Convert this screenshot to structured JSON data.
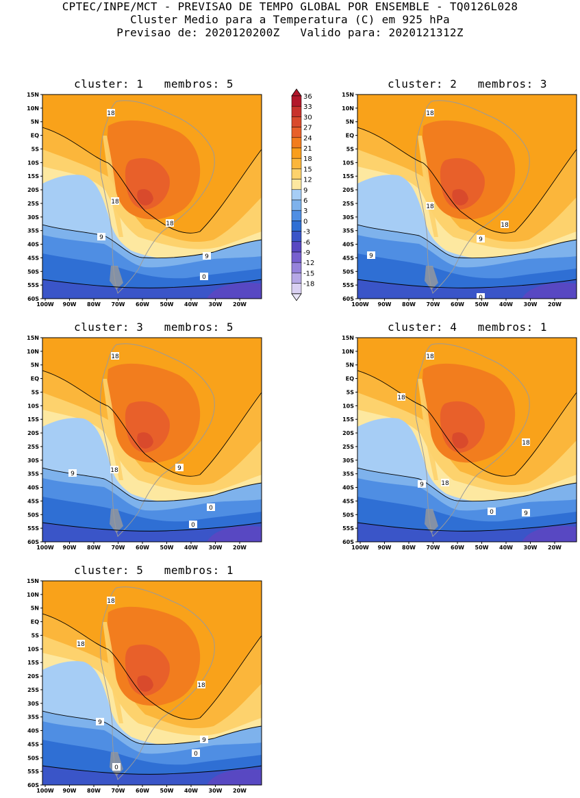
{
  "header": {
    "line1": "CPTEC/INPE/MCT - PREVISAO DE TEMPO GLOBAL POR ENSEMBLE - TQ0126L028",
    "line2": "Cluster Medio para a Temperatura (C) em 925 hPa",
    "line3": "Previsao de: 2020120200Z   Valido para: 2020121312Z"
  },
  "axes": {
    "lat_labels": [
      "15N",
      "10N",
      "5N",
      "EQ",
      "5S",
      "10S",
      "15S",
      "20S",
      "25S",
      "30S",
      "35S",
      "40S",
      "45S",
      "50S",
      "55S",
      "60S"
    ],
    "lon_labels": [
      "100W",
      "90W",
      "80W",
      "70W",
      "60W",
      "50W",
      "40W",
      "30W",
      "20W"
    ]
  },
  "colorbar": {
    "labels": [
      "36",
      "33",
      "30",
      "27",
      "24",
      "21",
      "18",
      "15",
      "12",
      "9",
      "6",
      "3",
      "0",
      "-3",
      "-6",
      "-9",
      "-12",
      "-15",
      "-18"
    ],
    "colors": [
      "#b2182b",
      "#c8322c",
      "#d94a2c",
      "#e8602a",
      "#f27d1e",
      "#f99e1c",
      "#fbb63b",
      "#fdd26d",
      "#fde8a0",
      "#a6cdf5",
      "#7eb2ec",
      "#4f8ee3",
      "#2f6fd4",
      "#3a55c8",
      "#5848c2",
      "#7760cf",
      "#9683db",
      "#b6a8e6",
      "#d9d0f2"
    ],
    "color_meaning": "temperature bins from 36 down to -18"
  },
  "panels": [
    {
      "title": "cluster: 1   membros: 5",
      "contour_labels": [
        "18",
        "18",
        "18",
        "9",
        "9",
        "0"
      ]
    },
    {
      "title": "cluster: 2   membros: 3",
      "contour_labels": [
        "18",
        "18",
        "18",
        "9",
        "9",
        "0"
      ]
    },
    {
      "title": "cluster: 3   membros: 5",
      "contour_labels": [
        "18",
        "18",
        "9",
        "9",
        "0",
        "0"
      ]
    },
    {
      "title": "cluster: 4   membros: 1",
      "contour_labels": [
        "18",
        "18",
        "18",
        "18",
        "9",
        "9",
        "0"
      ]
    },
    {
      "title": "cluster: 5   membros: 1",
      "contour_labels": [
        "18",
        "18",
        "18",
        "9",
        "9",
        "0",
        "0"
      ]
    }
  ]
}
